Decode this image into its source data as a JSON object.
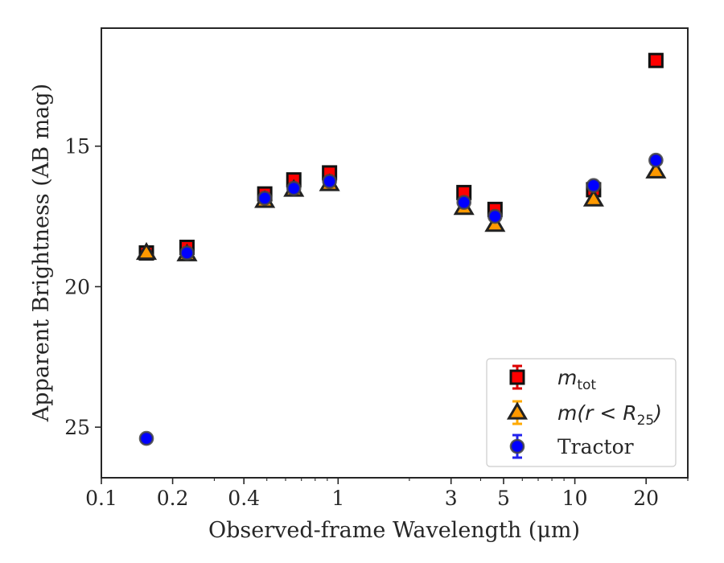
{
  "chart_data": {
    "type": "scatter",
    "xlabel": "Observed-frame Wavelength (μm)",
    "ylabel": "Apparent Brightness (AB mag)",
    "x_scale": "log",
    "xlim": [
      0.1,
      30
    ],
    "ylim": [
      26.8,
      10.8
    ],
    "y_inverted": true,
    "x_ticks": [
      0.1,
      0.2,
      0.4,
      1,
      3,
      5,
      10,
      20
    ],
    "x_tick_labels": [
      "0.1",
      "0.2",
      "0.4",
      "1",
      "3",
      "5",
      "10",
      "20"
    ],
    "y_ticks": [
      15,
      20,
      25
    ],
    "y_tick_labels": [
      "15",
      "20",
      "25"
    ],
    "legend_position": "lower-right",
    "series": [
      {
        "name": "m_tot",
        "legend_main": "m",
        "legend_sub": "tot",
        "marker": "square",
        "color": "#ff0000",
        "edge_color": "#111111",
        "errbar_color": "#dd0000",
        "points": [
          {
            "x": 0.155,
            "y": 18.8
          },
          {
            "x": 0.23,
            "y": 18.6
          },
          {
            "x": 0.49,
            "y": 16.7
          },
          {
            "x": 0.65,
            "y": 16.2
          },
          {
            "x": 0.92,
            "y": 15.95
          },
          {
            "x": 3.4,
            "y": 16.65
          },
          {
            "x": 4.6,
            "y": 17.25
          },
          {
            "x": 12.0,
            "y": 16.55
          },
          {
            "x": 22.0,
            "y": 11.95
          }
        ]
      },
      {
        "name": "m(r<R25)",
        "legend_main": "m(r < R",
        "legend_sub": "25",
        "legend_tail": ")",
        "marker": "triangle",
        "color": "#ff9900",
        "edge_color": "#222222",
        "errbar_color": "#ffaa00",
        "points": [
          {
            "x": 0.155,
            "y": 18.8
          },
          {
            "x": 0.23,
            "y": 18.85
          },
          {
            "x": 0.49,
            "y": 16.95
          },
          {
            "x": 0.65,
            "y": 16.55
          },
          {
            "x": 0.92,
            "y": 16.35
          },
          {
            "x": 3.4,
            "y": 17.2
          },
          {
            "x": 4.6,
            "y": 17.8
          },
          {
            "x": 12.0,
            "y": 16.9
          },
          {
            "x": 22.0,
            "y": 15.9
          }
        ]
      },
      {
        "name": "Tractor",
        "marker": "circle",
        "color": "#0000ff",
        "edge_color": "#444444",
        "errbar_color": "#2222ee",
        "points": [
          {
            "x": 0.155,
            "y": 25.4
          },
          {
            "x": 0.23,
            "y": 18.8
          },
          {
            "x": 0.49,
            "y": 16.85
          },
          {
            "x": 0.65,
            "y": 16.5
          },
          {
            "x": 0.92,
            "y": 16.25
          },
          {
            "x": 3.4,
            "y": 17.0
          },
          {
            "x": 4.6,
            "y": 17.5
          },
          {
            "x": 12.0,
            "y": 16.4
          },
          {
            "x": 22.0,
            "y": 15.5
          }
        ]
      }
    ]
  }
}
